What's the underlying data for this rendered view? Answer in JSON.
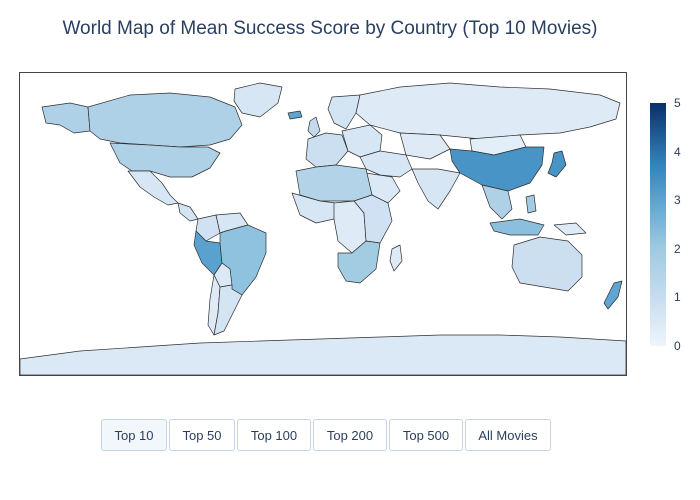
{
  "title": "World Map of Mean Success Score by Country (Top 10 Movies)",
  "colorbar": {
    "ticks": [
      "0",
      "1",
      "2",
      "3",
      "4",
      "5"
    ],
    "range": [
      0,
      5
    ],
    "scale_colors": [
      "#eef5fc",
      "#c7dcef",
      "#9ecae1",
      "#6baed6",
      "#3182bd",
      "#08306b"
    ]
  },
  "buttons": [
    {
      "label": "Top 10",
      "active": true
    },
    {
      "label": "Top 50",
      "active": false
    },
    {
      "label": "Top 100",
      "active": false
    },
    {
      "label": "Top 200",
      "active": false
    },
    {
      "label": "Top 500",
      "active": false
    },
    {
      "label": "All Movies",
      "active": false
    }
  ],
  "countries": [
    {
      "name": "Canada",
      "score": 1.6
    },
    {
      "name": "Alaska",
      "score": 1.6
    },
    {
      "name": "Greenland",
      "score": 0.6
    },
    {
      "name": "United States",
      "score": 1.6
    },
    {
      "name": "Mexico",
      "score": 0.6
    },
    {
      "name": "Central America",
      "score": 0.7
    },
    {
      "name": "Colombia",
      "score": 0.8
    },
    {
      "name": "Venezuela",
      "score": 0.6
    },
    {
      "name": "Peru",
      "score": 3.3
    },
    {
      "name": "Brazil",
      "score": 2.3
    },
    {
      "name": "Bolivia",
      "score": 0.5
    },
    {
      "name": "Argentina",
      "score": 0.7
    },
    {
      "name": "Chile",
      "score": 0.4
    },
    {
      "name": "Iceland",
      "score": 3.2
    },
    {
      "name": "United Kingdom",
      "score": 1.1
    },
    {
      "name": "Scandinavia",
      "score": 0.7
    },
    {
      "name": "Western Europe",
      "score": 0.9
    },
    {
      "name": "Eastern Europe",
      "score": 0.6
    },
    {
      "name": "Russia",
      "score": 0.4
    },
    {
      "name": "Kazakhstan",
      "score": 0.4
    },
    {
      "name": "North Africa",
      "score": 1.5
    },
    {
      "name": "West Africa",
      "score": 0.6
    },
    {
      "name": "Central Africa",
      "score": 0.4
    },
    {
      "name": "East Africa",
      "score": 0.8
    },
    {
      "name": "Southern Africa",
      "score": 1.9
    },
    {
      "name": "Madagascar",
      "score": 0.4
    },
    {
      "name": "Middle East",
      "score": 0.6
    },
    {
      "name": "Saudi Arabia",
      "score": 0.5
    },
    {
      "name": "India",
      "score": 0.6
    },
    {
      "name": "China",
      "score": 3.6
    },
    {
      "name": "Mongolia",
      "score": 0.3
    },
    {
      "name": "Japan",
      "score": 3.6
    },
    {
      "name": "Southeast Asia",
      "score": 1.6
    },
    {
      "name": "Indonesia",
      "score": 2.4
    },
    {
      "name": "Philippines",
      "score": 1.9
    },
    {
      "name": "Papua New Guinea",
      "score": 0.4
    },
    {
      "name": "Australia",
      "score": 0.9
    },
    {
      "name": "New Zealand",
      "score": 3.2
    },
    {
      "name": "Antarctica",
      "score": 0.5
    }
  ]
}
